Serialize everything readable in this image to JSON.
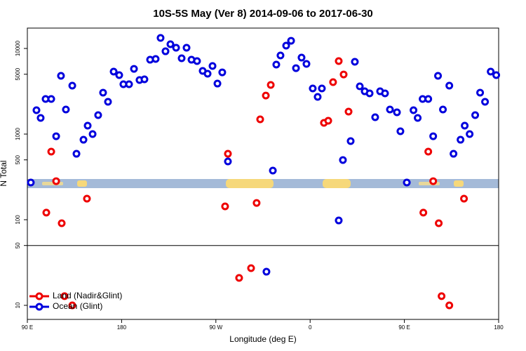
{
  "chart_data": {
    "type": "scatter",
    "title": "10S-5S May (Ver 8)   2014-09-06 to 2017-06-30",
    "x_label": "Longitude (deg E)",
    "y_label": "N Total",
    "log_y": true,
    "legend": "bottom-left",
    "axis_break": 50,
    "xlim": [
      90,
      540
    ],
    "ylim": [
      6.85,
      17300
    ],
    "xticks": [
      {
        "value": 90,
        "label": "90 E"
      },
      180,
      {
        "value": 270,
        "label": "90 W"
      },
      {
        "value": 360,
        "label": "0"
      },
      {
        "value": 450,
        "label": "90 E"
      },
      {
        "value": 540,
        "label": "180"
      }
    ],
    "yticks": [
      10,
      50,
      100,
      500,
      1000,
      5000,
      10000
    ],
    "series": [
      {
        "name": "Land (Nadir&Glint)",
        "color": "#ee0000",
        "x": [
          108.1,
          112.8,
          117.5,
          122.8,
          125.5,
          132.9,
          146.9,
          278.8,
          281.5,
          292.2,
          303.6,
          308.9,
          312.3,
          317.7,
          322.4,
          373.2,
          377.3,
          381.9,
          387.3,
          392.0,
          396.7,
          468.1,
          472.8,
          477.5,
          482.8,
          485.5,
          492.9,
          506.9
        ],
        "values": [
          121,
          624,
          282,
          91,
          12.8,
          10,
          176,
          143,
          589,
          20.9,
          27.2,
          157,
          1486,
          2820,
          3750,
          1352,
          1432,
          4040,
          7120,
          4970,
          1829,
          121,
          624,
          282,
          91,
          12.8,
          10,
          176
        ]
      },
      {
        "name": "Ocean (Glint)",
        "color": "#0000dd",
        "x": [
          93.3,
          98.7,
          102.7,
          107.4,
          112.8,
          117.5,
          122.1,
          126.8,
          132.9,
          136.9,
          143.6,
          147.6,
          152.3,
          157.6,
          162.3,
          167.0,
          172.4,
          177.7,
          181.7,
          187.1,
          191.8,
          197.1,
          201.8,
          207.2,
          212.5,
          217.2,
          221.9,
          226.6,
          232.0,
          237.3,
          242.0,
          246.7,
          252.0,
          257.4,
          262.1,
          266.8,
          271.5,
          276.1,
          281.5,
          318.3,
          324.4,
          327.7,
          331.7,
          337.1,
          341.8,
          346.5,
          351.8,
          356.5,
          362.5,
          367.2,
          371.2,
          387.3,
          391.3,
          398.7,
          402.7,
          407.4,
          412.1,
          416.8,
          422.1,
          426.8,
          431.5,
          436.2,
          442.9,
          446.2,
          452.3,
          458.7,
          462.7,
          467.4,
          472.8,
          477.5,
          482.1,
          486.8,
          492.9,
          496.9,
          503.6,
          507.6,
          512.3,
          517.6,
          522.3,
          527.0,
          532.4,
          537.7
        ],
        "values": [
          272,
          1900,
          1544,
          2570,
          2570,
          944,
          4790,
          1936,
          3680,
          589,
          859,
          1254,
          1000,
          1665,
          3047,
          2383,
          5370,
          4885,
          3820,
          3820,
          5780,
          4280,
          4360,
          7390,
          7540,
          13270,
          9270,
          11200,
          10190,
          7680,
          10190,
          7390,
          7120,
          5470,
          5070,
          6240,
          3890,
          5260,
          479,
          24.7,
          375,
          6480,
          8280,
          10790,
          12300,
          5890,
          7820,
          6600,
          3410,
          2720,
          3410,
          98,
          498,
          828,
          6990,
          3610,
          3160,
          2990,
          1573,
          3160,
          2990,
          1936,
          1795,
          1079,
          272,
          1900,
          1544,
          2570,
          2570,
          944,
          4790,
          1936,
          3680,
          589,
          859,
          1254,
          1000,
          1665,
          3047,
          2383,
          5370,
          4885
        ]
      }
    ]
  }
}
